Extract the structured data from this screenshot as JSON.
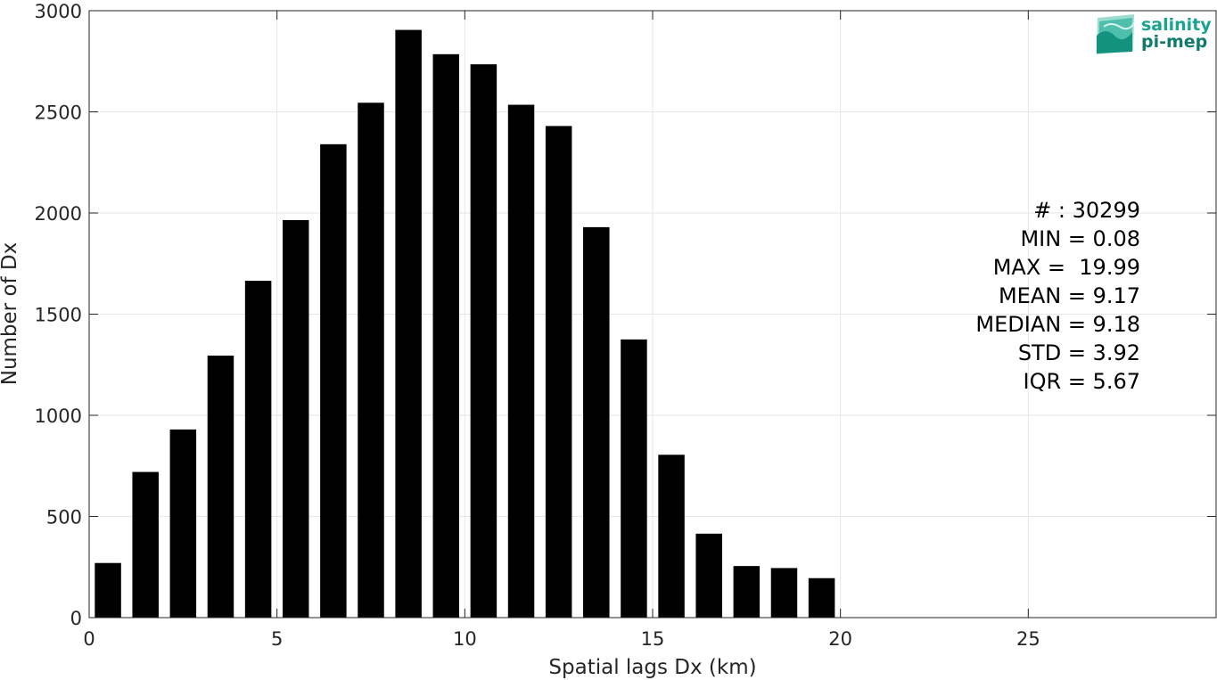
{
  "chart_data": {
    "type": "bar",
    "x": [
      0.5,
      1.5,
      2.5,
      3.5,
      4.5,
      5.5,
      6.5,
      7.5,
      8.5,
      9.5,
      10.5,
      11.5,
      12.5,
      13.5,
      14.5,
      15.5,
      16.5,
      17.5,
      18.5,
      19.5
    ],
    "values": [
      270,
      720,
      930,
      1295,
      1665,
      1965,
      2340,
      2545,
      2905,
      2785,
      2735,
      2535,
      2430,
      1930,
      1375,
      805,
      415,
      255,
      245,
      195
    ],
    "bar_width": 0.7,
    "bar_color": "#000000",
    "xlabel": "Spatial lags Dx (km)",
    "ylabel": "Number of Dx",
    "xlim": [
      0,
      30
    ],
    "ylim": [
      0,
      3000
    ],
    "xticks": [
      0,
      5,
      10,
      15,
      20,
      25
    ],
    "yticks": [
      0,
      500,
      1000,
      1500,
      2000,
      2500,
      3000
    ],
    "grid": true
  },
  "stats": [
    "# : 30299",
    "MIN = 0.08",
    "MAX =  19.99",
    "MEAN = 9.17",
    "MEDIAN = 9.18",
    "STD = 3.92",
    "IQR = 5.67"
  ],
  "logo": {
    "line1": "salinity",
    "line2": "pi-mep",
    "color_top": "#1aa391",
    "color_bottom": "#0f7a6e"
  }
}
